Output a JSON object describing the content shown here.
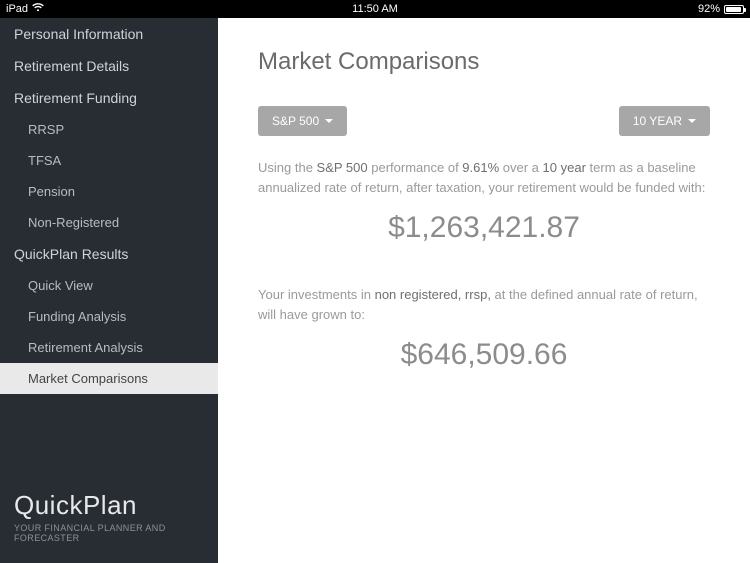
{
  "statusbar": {
    "device": "iPad",
    "time": "11:50 AM",
    "battery_pct": "92%",
    "battery_fill_pct": 92
  },
  "sidebar": {
    "items": [
      {
        "label": "Personal Information",
        "type": "item"
      },
      {
        "label": "Retirement Details",
        "type": "item"
      },
      {
        "label": "Retirement Funding",
        "type": "item"
      },
      {
        "label": "RRSP",
        "type": "sub"
      },
      {
        "label": "TFSA",
        "type": "sub"
      },
      {
        "label": "Pension",
        "type": "sub"
      },
      {
        "label": "Non-Registered",
        "type": "sub"
      },
      {
        "label": "QuickPlan Results",
        "type": "item"
      },
      {
        "label": "Quick View",
        "type": "sub"
      },
      {
        "label": "Funding Analysis",
        "type": "sub"
      },
      {
        "label": "Retirement Analysis",
        "type": "sub"
      },
      {
        "label": "Market Comparisons",
        "type": "sub",
        "active": true
      }
    ],
    "brand_light": "Quick",
    "brand_bold": "Plan",
    "brand_sub": "YOUR FINANCIAL PLANNER AND FORECASTER"
  },
  "main": {
    "title": "Market Comparisons",
    "index_pill": "S&P 500",
    "term_pill": "10 YEAR",
    "p1_a": "Using the ",
    "p1_b_index": "S&P 500",
    "p1_c": " performance of ",
    "p1_d_rate": "9.61%",
    "p1_e": " over a ",
    "p1_f_term": "10 year",
    "p1_g": " term as a baseline annualized rate of return, after taxation, your retirement would be funded with:",
    "amount1": "$1,263,421.87",
    "p2_a": "Your investments in ",
    "p2_b_accounts": "non registered, rrsp,",
    "p2_c": " at the defined annual rate of return, will have grown to:",
    "amount2": "$646,509.66"
  },
  "colors": {
    "sidebar_bg": "#272d33",
    "pill_bg": "#a7a7a7",
    "text_muted": "#9a9a9a"
  }
}
